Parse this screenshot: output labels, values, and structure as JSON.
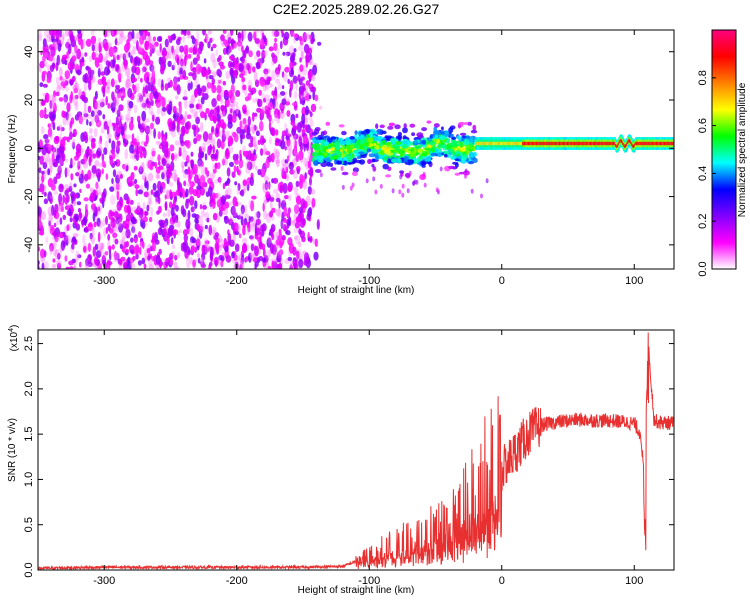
{
  "title": "C2E2.2025.289.02.26.G27",
  "chart_data": [
    {
      "type": "heatmap",
      "xlabel": "Height of straight line (km)",
      "ylabel": "Frequency (Hz)",
      "xlim": [
        -350,
        130
      ],
      "ylim": [
        -50,
        49
      ],
      "xticks": [
        "-300",
        "-200",
        "-100",
        "0",
        "100"
      ],
      "yticks": [
        "40",
        "20",
        "0",
        "-20",
        "-40"
      ],
      "colorbar": {
        "label": "Normalized spectral amplitude",
        "range": [
          0.0,
          1.0
        ],
        "ticks": [
          "0.0",
          "0.2",
          "0.4",
          "0.6",
          "0.8"
        ],
        "colors": [
          "#ffffff",
          "#ff00ff",
          "#8000ff",
          "#0000ff",
          "#00ffff",
          "#00ff00",
          "#ffff00",
          "#ff8000",
          "#ff0000",
          "#ff0080"
        ]
      },
      "regions": [
        {
          "x_range": [
            -350,
            -142
          ],
          "y_range": [
            -50,
            49
          ],
          "amplitude": "low, broadband speckle"
        },
        {
          "x_range": [
            -142,
            -20
          ],
          "y_center": 0,
          "y_halfwidth": 5,
          "amplitude": "medium, noisy band"
        },
        {
          "x_range": [
            -20,
            130
          ],
          "y_center": 2,
          "y_halfwidth": 1.5,
          "amplitude": "high, narrow line"
        }
      ]
    },
    {
      "type": "line",
      "xlabel": "Height of straight line (km)",
      "ylabel": "SNR (10 * v/v)",
      "scale_label": "(x10",
      "scale_exp": "4",
      "xlim": [
        -350,
        130
      ],
      "ylim": [
        0,
        2.65
      ],
      "xticks": [
        "-300",
        "-200",
        "-100",
        "0",
        "100"
      ],
      "yticks": [
        "0.0",
        "0.5",
        "1.0",
        "1.5",
        "2.0",
        "2.5"
      ],
      "color": "#e83030",
      "series": [
        {
          "x": [
            -350,
            -300,
            -250,
            -200,
            -150,
            -120,
            -100,
            -80,
            -60,
            -40,
            -20,
            -10,
            0,
            10,
            20,
            30,
            40,
            50,
            60,
            70,
            80,
            90,
            100,
            105,
            108,
            110,
            115,
            120,
            130
          ],
          "y": [
            0.02,
            0.03,
            0.03,
            0.03,
            0.03,
            0.04,
            0.15,
            0.25,
            0.35,
            0.45,
            0.75,
            0.95,
            1.1,
            1.3,
            1.5,
            1.6,
            1.63,
            1.65,
            1.66,
            1.65,
            1.65,
            1.64,
            1.62,
            1.5,
            0.9,
            2.6,
            1.65,
            1.63,
            1.62
          ]
        }
      ]
    }
  ]
}
